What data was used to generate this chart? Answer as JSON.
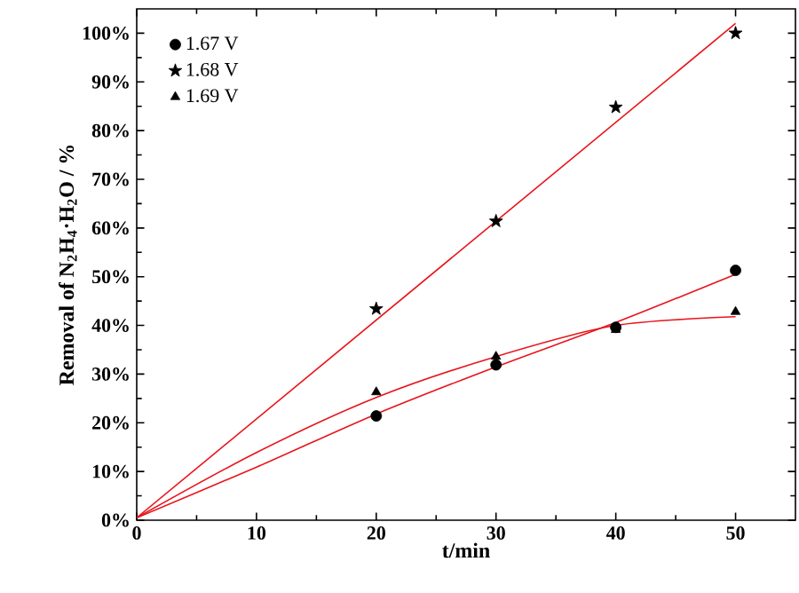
{
  "chart_data": {
    "type": "scatter",
    "xlabel": "t/min",
    "ylabel": "Removal of N$_{2}$H$_{4}$·H$_{2}$O / %",
    "xlim": [
      0,
      55
    ],
    "ylim": [
      0,
      105
    ],
    "xticks": [
      0,
      10,
      20,
      30,
      40,
      50
    ],
    "yticks": [
      {
        "value": 0,
        "label": "0%"
      },
      {
        "value": 10,
        "label": "10%"
      },
      {
        "value": 20,
        "label": "20%"
      },
      {
        "value": 30,
        "label": "30%"
      },
      {
        "value": 40,
        "label": "40%"
      },
      {
        "value": 50,
        "label": "50%"
      },
      {
        "value": 60,
        "label": "60%"
      },
      {
        "value": 70,
        "label": "70%"
      },
      {
        "value": 80,
        "label": "80%"
      },
      {
        "value": 90,
        "label": "90%"
      },
      {
        "value": 100,
        "label": "100%"
      }
    ],
    "grid": false,
    "legend": "top left",
    "series": [
      {
        "name": "1.67 V",
        "marker": "circle",
        "color": "#000000",
        "x": [
          20,
          30,
          40,
          50
        ],
        "values": [
          21.4,
          31.9,
          39.6,
          51.3
        ]
      },
      {
        "name": "1.68 V",
        "marker": "star",
        "color": "#000000",
        "x": [
          20,
          30,
          40,
          50
        ],
        "values": [
          43.4,
          61.4,
          84.8,
          100
        ]
      },
      {
        "name": "1.69 V",
        "marker": "triangle",
        "color": "#000000",
        "x": [
          20,
          30,
          40,
          50
        ],
        "values": [
          26.3,
          33.6,
          39.1,
          42.8
        ]
      },
      {
        "type": "line",
        "marker": "none",
        "color": "#e8141b",
        "x": [
          0,
          10,
          20,
          30,
          40,
          50
        ],
        "values": [
          0.5,
          10.9,
          21.8,
          31.5,
          40.6,
          50.5
        ]
      },
      {
        "type": "line",
        "marker": "none",
        "color": "#e8141b",
        "x": [
          0,
          50
        ],
        "values": [
          0.5,
          102
        ]
      },
      {
        "type": "line",
        "marker": "none",
        "color": "#e8141b",
        "x": [
          0,
          10,
          20,
          30,
          40,
          50
        ],
        "values": [
          0.5,
          13.9,
          25.2,
          33.6,
          40,
          41.8
        ]
      }
    ]
  }
}
